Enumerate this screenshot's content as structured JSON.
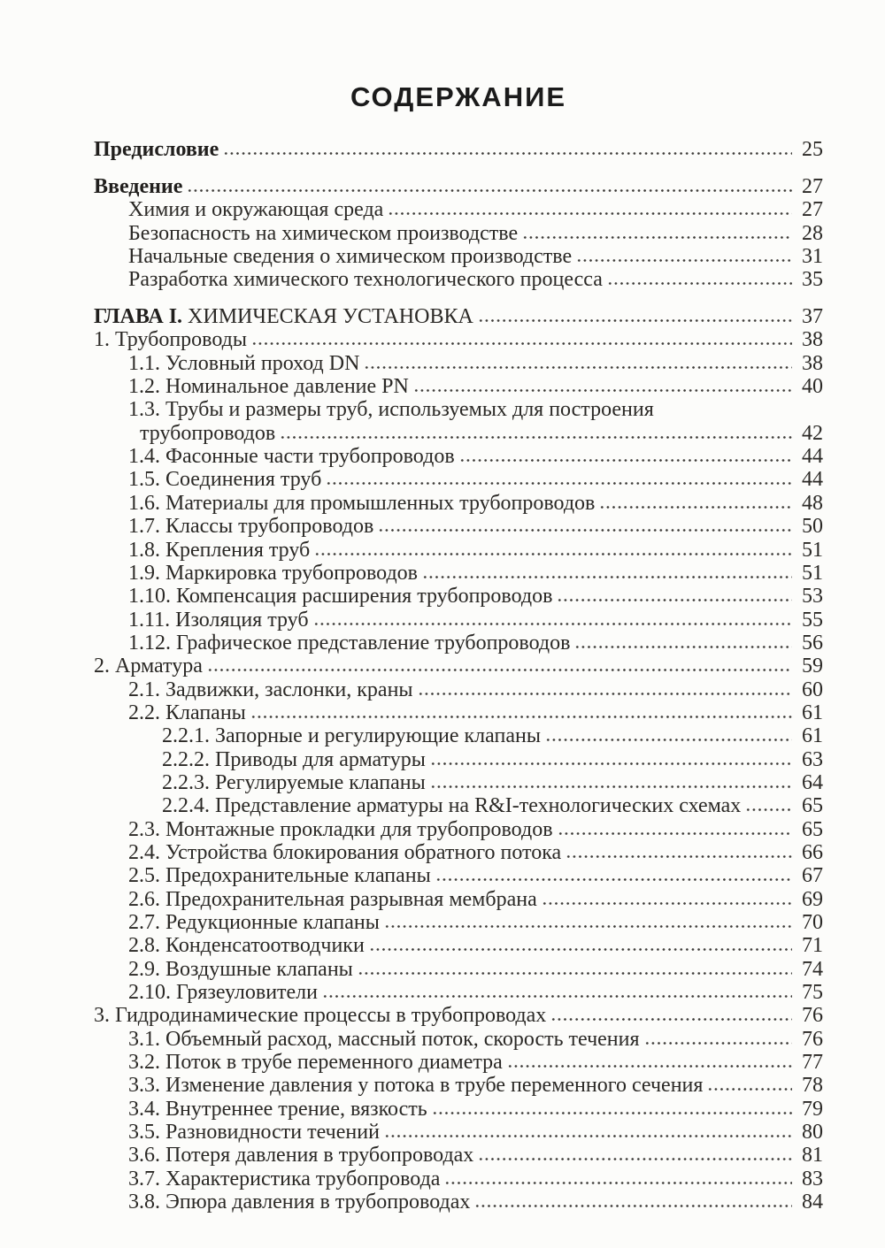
{
  "toc": {
    "title": "СОДЕРЖАНИЕ",
    "entries": [
      {
        "b": "Предисловие",
        "t": "",
        "page": "25",
        "level": "0",
        "bold": true
      },
      {
        "b": "Введение",
        "t": "",
        "page": "27",
        "level": "0",
        "bold": true,
        "gap": true
      },
      {
        "b": "",
        "t": "Химия и окружающая среда",
        "page": "27",
        "level": "1"
      },
      {
        "b": "",
        "t": "Безопасность на химическом производстве",
        "page": "28",
        "level": "1"
      },
      {
        "b": "",
        "t": "Начальные сведения о химическом производстве",
        "page": "31",
        "level": "1"
      },
      {
        "b": "",
        "t": "Разработка химического технологического процесса",
        "page": "35",
        "level": "1"
      },
      {
        "b": "ГЛАВА I.",
        "t": " ХИМИЧЕСКАЯ УСТАНОВКА",
        "page": "37",
        "level": "0",
        "gap": true
      },
      {
        "b": "",
        "t": "1. Трубопроводы",
        "page": "38",
        "level": "0"
      },
      {
        "b": "",
        "t": "1.1. Условный проход DN",
        "page": "38",
        "level": "1"
      },
      {
        "b": "",
        "t": "1.2. Номинальное давление PN",
        "page": "40",
        "level": "1"
      },
      {
        "b": "",
        "t": "1.3. Трубы и размеры труб, используемых для построения",
        "page": "",
        "level": "1"
      },
      {
        "b": "",
        "t": "трубопроводов",
        "page": "42",
        "level": "c"
      },
      {
        "b": "",
        "t": "1.4. Фасонные части трубопроводов",
        "page": "44",
        "level": "1"
      },
      {
        "b": "",
        "t": "1.5. Соединения труб",
        "page": "44",
        "level": "1"
      },
      {
        "b": "",
        "t": "1.6. Материалы для промышленных трубопроводов",
        "page": "48",
        "level": "1"
      },
      {
        "b": "",
        "t": "1.7. Классы трубопроводов",
        "page": "50",
        "level": "1"
      },
      {
        "b": "",
        "t": "1.8. Крепления труб",
        "page": "51",
        "level": "1"
      },
      {
        "b": "",
        "t": "1.9. Маркировка трубопроводов",
        "page": "51",
        "level": "1"
      },
      {
        "b": "",
        "t": "1.10. Компенсация расширения трубопроводов",
        "page": "53",
        "level": "1"
      },
      {
        "b": "",
        "t": "1.11. Изоляция труб",
        "page": "55",
        "level": "1"
      },
      {
        "b": "",
        "t": "1.12. Графическое представление трубопроводов",
        "page": "56",
        "level": "1"
      },
      {
        "b": "",
        "t": "2. Арматура",
        "page": "59",
        "level": "0"
      },
      {
        "b": "",
        "t": "2.1. Задвижки, заслонки, краны",
        "page": "60",
        "level": "1"
      },
      {
        "b": "",
        "t": "2.2. Клапаны",
        "page": "61",
        "level": "1"
      },
      {
        "b": "",
        "t": "2.2.1. Запорные и регулирующие клапаны",
        "page": "61",
        "level": "2"
      },
      {
        "b": "",
        "t": "2.2.2. Приводы для арматуры",
        "page": "63",
        "level": "2"
      },
      {
        "b": "",
        "t": "2.2.3. Регулируемые клапаны",
        "page": "64",
        "level": "2"
      },
      {
        "b": "",
        "t": "2.2.4. Представление арматуры на R&I-технологических схемах",
        "page": "65",
        "level": "2"
      },
      {
        "b": "",
        "t": "2.3. Монтажные прокладки для трубопроводов",
        "page": "65",
        "level": "1"
      },
      {
        "b": "",
        "t": "2.4. Устройства блокирования обратного потока",
        "page": "66",
        "level": "1"
      },
      {
        "b": "",
        "t": "2.5. Предохранительные клапаны",
        "page": "67",
        "level": "1"
      },
      {
        "b": "",
        "t": "2.6. Предохранительная разрывная мембрана",
        "page": "69",
        "level": "1"
      },
      {
        "b": "",
        "t": "2.7. Редукционные клапаны",
        "page": "70",
        "level": "1"
      },
      {
        "b": "",
        "t": "2.8. Конденсатоотводчики",
        "page": "71",
        "level": "1"
      },
      {
        "b": "",
        "t": "2.9. Воздушные клапаны",
        "page": "74",
        "level": "1"
      },
      {
        "b": "",
        "t": "2.10. Грязеуловители",
        "page": "75",
        "level": "1"
      },
      {
        "b": "",
        "t": "3. Гидродинамические процессы в трубопроводах",
        "page": "76",
        "level": "0"
      },
      {
        "b": "",
        "t": "3.1. Объемный расход, массный поток, скорость течения",
        "page": "76",
        "level": "1"
      },
      {
        "b": "",
        "t": "3.2. Поток в трубе переменного диаметра",
        "page": "77",
        "level": "1"
      },
      {
        "b": "",
        "t": "3.3. Изменение давления у потока в трубе переменного сечения",
        "page": "78",
        "level": "1"
      },
      {
        "b": "",
        "t": "3.4. Внутреннее трение, вязкость",
        "page": "79",
        "level": "1"
      },
      {
        "b": "",
        "t": "3.5. Разновидности течений",
        "page": "80",
        "level": "1"
      },
      {
        "b": "",
        "t": "3.6. Потеря давления в трубопроводах",
        "page": "81",
        "level": "1"
      },
      {
        "b": "",
        "t": "3.7. Характеристика трубопровода",
        "page": "83",
        "level": "1"
      },
      {
        "b": "",
        "t": "3.8. Эпюра давления в трубопроводах",
        "page": "84",
        "level": "1"
      }
    ]
  }
}
